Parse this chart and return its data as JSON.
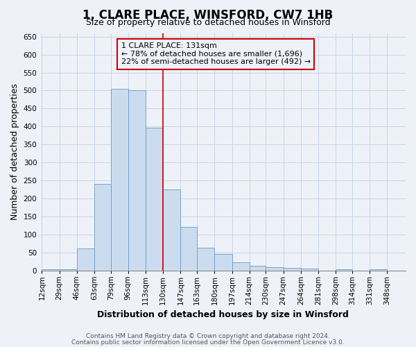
{
  "title": "1, CLARE PLACE, WINSFORD, CW7 1HB",
  "subtitle": "Size of property relative to detached houses in Winsford",
  "xlabel": "Distribution of detached houses by size in Winsford",
  "ylabel": "Number of detached properties",
  "bin_labels": [
    "12sqm",
    "29sqm",
    "46sqm",
    "63sqm",
    "79sqm",
    "96sqm",
    "113sqm",
    "130sqm",
    "147sqm",
    "163sqm",
    "180sqm",
    "197sqm",
    "214sqm",
    "230sqm",
    "247sqm",
    "264sqm",
    "281sqm",
    "298sqm",
    "314sqm",
    "331sqm",
    "348sqm"
  ],
  "bin_values": [
    3,
    3,
    60,
    240,
    505,
    500,
    397,
    225,
    120,
    62,
    45,
    23,
    13,
    9,
    7,
    5,
    0,
    3,
    0,
    3,
    0
  ],
  "bar_color": "#ccdcef",
  "bar_edge_color": "#6699cc",
  "property_line_x": 130,
  "property_line_color": "#cc0000",
  "annotation_line1": "1 CLARE PLACE: 131sqm",
  "annotation_line2": "← 78% of detached houses are smaller (1,696)",
  "annotation_line3": "22% of semi-detached houses are larger (492) →",
  "annotation_box_color": "#cc0000",
  "ylim": [
    0,
    660
  ],
  "yticks": [
    0,
    50,
    100,
    150,
    200,
    250,
    300,
    350,
    400,
    450,
    500,
    550,
    600,
    650
  ],
  "footer1": "Contains HM Land Registry data © Crown copyright and database right 2024.",
  "footer2": "Contains public sector information licensed under the Open Government Licence v3.0.",
  "bg_color": "#eef2f8",
  "grid_color": "#c8d4e8",
  "title_fontsize": 12,
  "subtitle_fontsize": 9,
  "axis_label_fontsize": 9,
  "tick_fontsize": 7.5,
  "footer_fontsize": 6.5,
  "annotation_fontsize": 8
}
